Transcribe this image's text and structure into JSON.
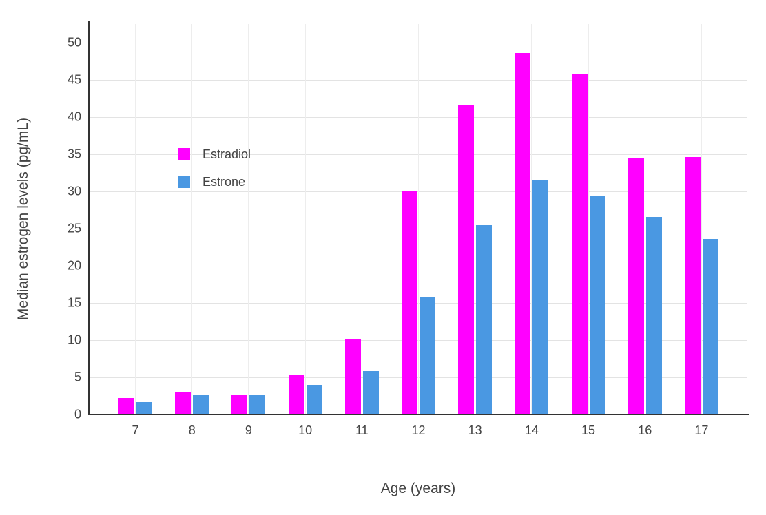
{
  "chart_data": {
    "type": "bar",
    "title": "",
    "xlabel": "Age (years)",
    "ylabel": "Median estrogen levels (pg/mL)",
    "categories": [
      "7",
      "8",
      "9",
      "10",
      "11",
      "12",
      "13",
      "14",
      "15",
      "16",
      "17"
    ],
    "series": [
      {
        "name": "Estradiol",
        "color": "#FF00FF",
        "values": [
          2.2,
          3.1,
          2.6,
          5.3,
          10.2,
          30.0,
          41.6,
          48.6,
          45.8,
          34.5,
          34.6
        ]
      },
      {
        "name": "Estrone",
        "color": "#4A98E2",
        "values": [
          1.7,
          2.7,
          2.6,
          4.0,
          5.8,
          15.7,
          25.5,
          31.5,
          29.4,
          26.6,
          23.6
        ]
      }
    ],
    "ylim": [
      0,
      52.5
    ],
    "yticks": [
      0,
      5,
      10,
      15,
      20,
      25,
      30,
      35,
      40,
      45,
      50
    ],
    "grid": true,
    "legend_position": "inside-top-left",
    "colors": {
      "background": "#ffffff",
      "axis": "#333333",
      "gridline": "#e3e3e3",
      "tick_text": "#444444"
    }
  }
}
